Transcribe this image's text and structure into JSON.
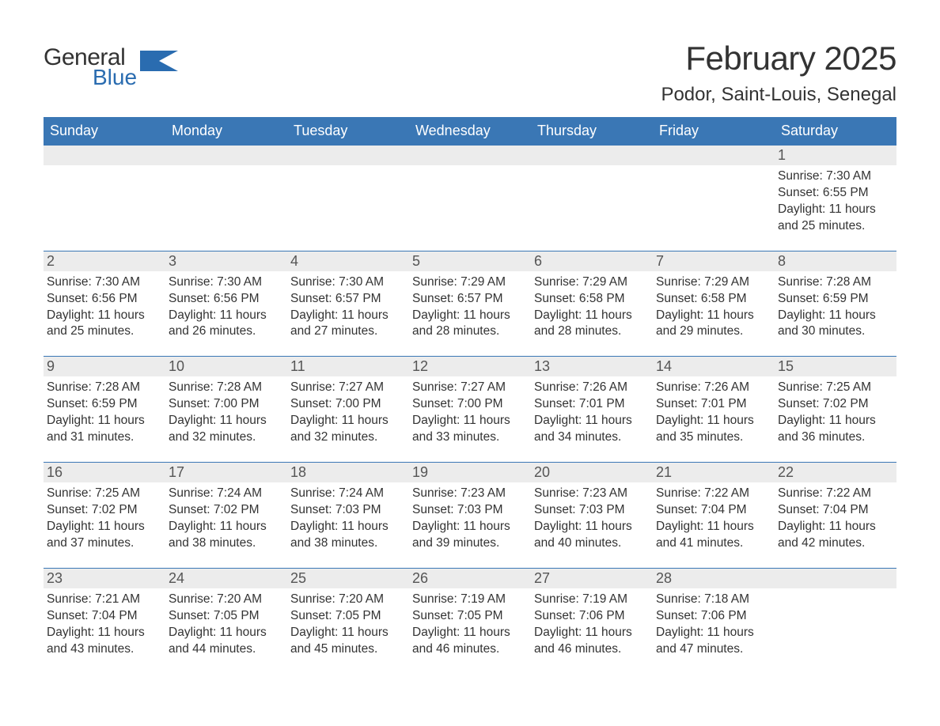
{
  "logo": {
    "general": "General",
    "blue": "Blue"
  },
  "title": "February 2025",
  "location": "Podor, Saint-Louis, Senegal",
  "colors": {
    "header_bg": "#3a77b5",
    "header_text": "#ffffff",
    "daynum_bg": "#ececec",
    "daynum_text": "#555555",
    "body_text": "#333333",
    "row_border": "#3a77b5",
    "logo_blue": "#2a6cb0"
  },
  "dow": [
    "Sunday",
    "Monday",
    "Tuesday",
    "Wednesday",
    "Thursday",
    "Friday",
    "Saturday"
  ],
  "weeks": [
    [
      {
        "day": "",
        "lines": []
      },
      {
        "day": "",
        "lines": []
      },
      {
        "day": "",
        "lines": []
      },
      {
        "day": "",
        "lines": []
      },
      {
        "day": "",
        "lines": []
      },
      {
        "day": "",
        "lines": []
      },
      {
        "day": "1",
        "lines": [
          "Sunrise: 7:30 AM",
          "Sunset: 6:55 PM",
          "Daylight: 11 hours and 25 minutes."
        ]
      }
    ],
    [
      {
        "day": "2",
        "lines": [
          "Sunrise: 7:30 AM",
          "Sunset: 6:56 PM",
          "Daylight: 11 hours and 25 minutes."
        ]
      },
      {
        "day": "3",
        "lines": [
          "Sunrise: 7:30 AM",
          "Sunset: 6:56 PM",
          "Daylight: 11 hours and 26 minutes."
        ]
      },
      {
        "day": "4",
        "lines": [
          "Sunrise: 7:30 AM",
          "Sunset: 6:57 PM",
          "Daylight: 11 hours and 27 minutes."
        ]
      },
      {
        "day": "5",
        "lines": [
          "Sunrise: 7:29 AM",
          "Sunset: 6:57 PM",
          "Daylight: 11 hours and 28 minutes."
        ]
      },
      {
        "day": "6",
        "lines": [
          "Sunrise: 7:29 AM",
          "Sunset: 6:58 PM",
          "Daylight: 11 hours and 28 minutes."
        ]
      },
      {
        "day": "7",
        "lines": [
          "Sunrise: 7:29 AM",
          "Sunset: 6:58 PM",
          "Daylight: 11 hours and 29 minutes."
        ]
      },
      {
        "day": "8",
        "lines": [
          "Sunrise: 7:28 AM",
          "Sunset: 6:59 PM",
          "Daylight: 11 hours and 30 minutes."
        ]
      }
    ],
    [
      {
        "day": "9",
        "lines": [
          "Sunrise: 7:28 AM",
          "Sunset: 6:59 PM",
          "Daylight: 11 hours and 31 minutes."
        ]
      },
      {
        "day": "10",
        "lines": [
          "Sunrise: 7:28 AM",
          "Sunset: 7:00 PM",
          "Daylight: 11 hours and 32 minutes."
        ]
      },
      {
        "day": "11",
        "lines": [
          "Sunrise: 7:27 AM",
          "Sunset: 7:00 PM",
          "Daylight: 11 hours and 32 minutes."
        ]
      },
      {
        "day": "12",
        "lines": [
          "Sunrise: 7:27 AM",
          "Sunset: 7:00 PM",
          "Daylight: 11 hours and 33 minutes."
        ]
      },
      {
        "day": "13",
        "lines": [
          "Sunrise: 7:26 AM",
          "Sunset: 7:01 PM",
          "Daylight: 11 hours and 34 minutes."
        ]
      },
      {
        "day": "14",
        "lines": [
          "Sunrise: 7:26 AM",
          "Sunset: 7:01 PM",
          "Daylight: 11 hours and 35 minutes."
        ]
      },
      {
        "day": "15",
        "lines": [
          "Sunrise: 7:25 AM",
          "Sunset: 7:02 PM",
          "Daylight: 11 hours and 36 minutes."
        ]
      }
    ],
    [
      {
        "day": "16",
        "lines": [
          "Sunrise: 7:25 AM",
          "Sunset: 7:02 PM",
          "Daylight: 11 hours and 37 minutes."
        ]
      },
      {
        "day": "17",
        "lines": [
          "Sunrise: 7:24 AM",
          "Sunset: 7:02 PM",
          "Daylight: 11 hours and 38 minutes."
        ]
      },
      {
        "day": "18",
        "lines": [
          "Sunrise: 7:24 AM",
          "Sunset: 7:03 PM",
          "Daylight: 11 hours and 38 minutes."
        ]
      },
      {
        "day": "19",
        "lines": [
          "Sunrise: 7:23 AM",
          "Sunset: 7:03 PM",
          "Daylight: 11 hours and 39 minutes."
        ]
      },
      {
        "day": "20",
        "lines": [
          "Sunrise: 7:23 AM",
          "Sunset: 7:03 PM",
          "Daylight: 11 hours and 40 minutes."
        ]
      },
      {
        "day": "21",
        "lines": [
          "Sunrise: 7:22 AM",
          "Sunset: 7:04 PM",
          "Daylight: 11 hours and 41 minutes."
        ]
      },
      {
        "day": "22",
        "lines": [
          "Sunrise: 7:22 AM",
          "Sunset: 7:04 PM",
          "Daylight: 11 hours and 42 minutes."
        ]
      }
    ],
    [
      {
        "day": "23",
        "lines": [
          "Sunrise: 7:21 AM",
          "Sunset: 7:04 PM",
          "Daylight: 11 hours and 43 minutes."
        ]
      },
      {
        "day": "24",
        "lines": [
          "Sunrise: 7:20 AM",
          "Sunset: 7:05 PM",
          "Daylight: 11 hours and 44 minutes."
        ]
      },
      {
        "day": "25",
        "lines": [
          "Sunrise: 7:20 AM",
          "Sunset: 7:05 PM",
          "Daylight: 11 hours and 45 minutes."
        ]
      },
      {
        "day": "26",
        "lines": [
          "Sunrise: 7:19 AM",
          "Sunset: 7:05 PM",
          "Daylight: 11 hours and 46 minutes."
        ]
      },
      {
        "day": "27",
        "lines": [
          "Sunrise: 7:19 AM",
          "Sunset: 7:06 PM",
          "Daylight: 11 hours and 46 minutes."
        ]
      },
      {
        "day": "28",
        "lines": [
          "Sunrise: 7:18 AM",
          "Sunset: 7:06 PM",
          "Daylight: 11 hours and 47 minutes."
        ]
      },
      {
        "day": "",
        "lines": []
      }
    ]
  ]
}
